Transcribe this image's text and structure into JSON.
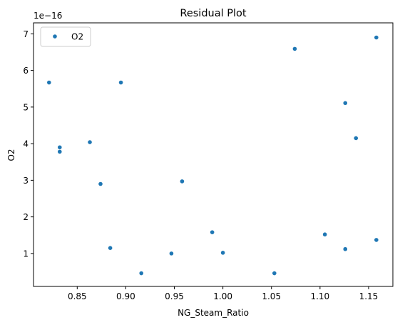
{
  "chart_data": {
    "type": "scatter",
    "title": "Residual Plot",
    "xlabel": "NG_Steam_Ratio",
    "ylabel": "O2",
    "y_offset_label": "1e−16",
    "xlim": [
      0.805,
      1.175
    ],
    "ylim": [
      0.1,
      7.3
    ],
    "x_ticks": [
      0.85,
      0.9,
      0.95,
      1.0,
      1.05,
      1.1,
      1.15
    ],
    "x_tick_labels": [
      "0.85",
      "0.90",
      "0.95",
      "1.00",
      "1.05",
      "1.10",
      "1.15"
    ],
    "y_ticks": [
      1,
      2,
      3,
      4,
      5,
      6,
      7
    ],
    "y_tick_labels": [
      "1",
      "2",
      "3",
      "4",
      "5",
      "6",
      "7"
    ],
    "grid": false,
    "legend_position": "upper-left",
    "series": [
      {
        "name": "O2",
        "color": "#1f77b4",
        "points": [
          {
            "x": 0.821,
            "y": 5.67
          },
          {
            "x": 0.832,
            "y": 3.9
          },
          {
            "x": 0.832,
            "y": 3.78
          },
          {
            "x": 0.863,
            "y": 4.04
          },
          {
            "x": 0.874,
            "y": 2.9
          },
          {
            "x": 0.884,
            "y": 1.15
          },
          {
            "x": 0.895,
            "y": 5.67
          },
          {
            "x": 0.916,
            "y": 0.46
          },
          {
            "x": 0.947,
            "y": 1.0
          },
          {
            "x": 0.958,
            "y": 2.97
          },
          {
            "x": 0.989,
            "y": 1.58
          },
          {
            "x": 1.0,
            "y": 1.02
          },
          {
            "x": 1.053,
            "y": 0.46
          },
          {
            "x": 1.074,
            "y": 6.59
          },
          {
            "x": 1.105,
            "y": 1.52
          },
          {
            "x": 1.126,
            "y": 5.11
          },
          {
            "x": 1.126,
            "y": 1.12
          },
          {
            "x": 1.137,
            "y": 4.15
          },
          {
            "x": 1.158,
            "y": 6.9
          },
          {
            "x": 1.158,
            "y": 1.37
          }
        ]
      }
    ]
  }
}
